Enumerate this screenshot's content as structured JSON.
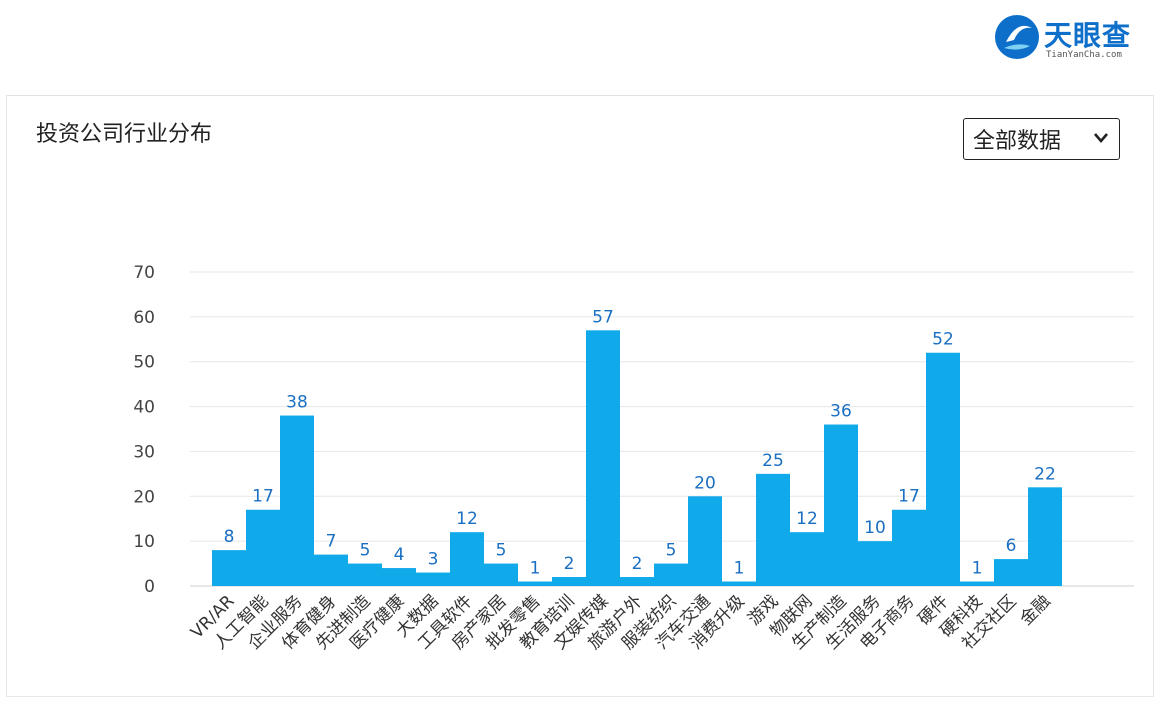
{
  "header": {
    "logo_text": "天眼查",
    "logo_sub": "TianYanCha.com"
  },
  "panel": {
    "title": "投资公司行业分布",
    "dropdown_label": "全部数据"
  },
  "colors": {
    "bar": "#10aaea",
    "value_label": "#1a6fc2",
    "grid": "#e6e6e6",
    "logo": "#0d6fc9"
  },
  "chart_data": {
    "type": "bar",
    "title": "投资公司行业分布",
    "xlabel": "",
    "ylabel": "",
    "ylim": [
      0,
      70
    ],
    "yticks": [
      0,
      10,
      20,
      30,
      40,
      50,
      60,
      70
    ],
    "grid": true,
    "categories": [
      "VR/AR",
      "人工智能",
      "企业服务",
      "体育健身",
      "先进制造",
      "医疗健康",
      "大数据",
      "工具软件",
      "房产家居",
      "批发零售",
      "教育培训",
      "文娱传媒",
      "旅游户外",
      "服装纺织",
      "汽车交通",
      "消费升级",
      "游戏",
      "物联网",
      "生产制造",
      "生活服务",
      "电子商务",
      "硬件",
      "硬科技",
      "社交社区",
      "金融"
    ],
    "values": [
      8,
      17,
      38,
      7,
      5,
      4,
      3,
      12,
      5,
      1,
      2,
      57,
      2,
      5,
      20,
      1,
      25,
      12,
      36,
      10,
      17,
      52,
      1,
      6,
      22
    ]
  }
}
